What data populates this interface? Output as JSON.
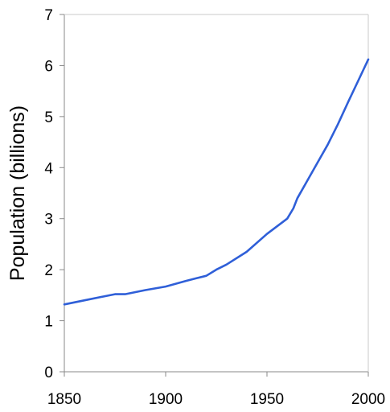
{
  "chart_data": {
    "type": "line",
    "title": "",
    "xlabel": "",
    "ylabel": "Population (billions)",
    "xlim": [
      1850,
      2000
    ],
    "ylim": [
      0,
      7
    ],
    "x_ticks": [
      "1850",
      "1900",
      "1950",
      "2000"
    ],
    "y_ticks": [
      "0",
      "1",
      "2",
      "3",
      "4",
      "5",
      "6",
      "7"
    ],
    "grid": false,
    "legend": "none",
    "series": [
      {
        "color": "#2f5fd8",
        "points": [
          [
            1850,
            1.32
          ],
          [
            1860,
            1.4
          ],
          [
            1870,
            1.48
          ],
          [
            1875,
            1.52
          ],
          [
            1880,
            1.52
          ],
          [
            1890,
            1.6
          ],
          [
            1900,
            1.67
          ],
          [
            1910,
            1.78
          ],
          [
            1915,
            1.83
          ],
          [
            1920,
            1.88
          ],
          [
            1925,
            2.0
          ],
          [
            1930,
            2.1
          ],
          [
            1940,
            2.35
          ],
          [
            1950,
            2.7
          ],
          [
            1955,
            2.85
          ],
          [
            1960,
            3.0
          ],
          [
            1963,
            3.2
          ],
          [
            1965,
            3.4
          ],
          [
            1970,
            3.75
          ],
          [
            1975,
            4.1
          ],
          [
            1980,
            4.45
          ],
          [
            1985,
            4.85
          ],
          [
            1990,
            5.28
          ],
          [
            1995,
            5.7
          ],
          [
            2000,
            6.12
          ]
        ]
      }
    ]
  }
}
